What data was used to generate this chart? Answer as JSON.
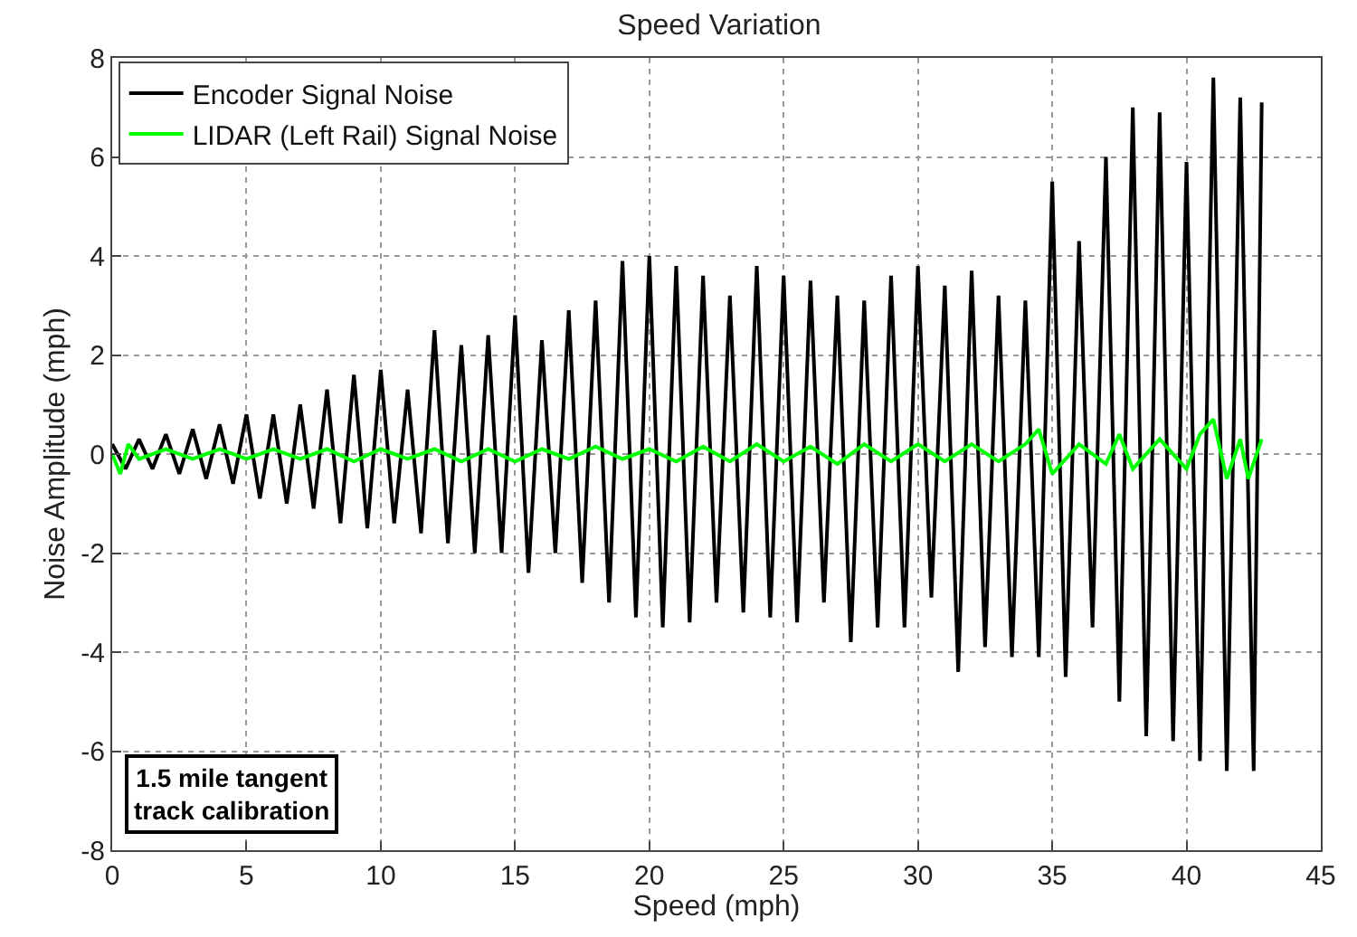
{
  "chart_data": {
    "type": "line",
    "title": "Speed Variation",
    "xlabel": "Speed (mph)",
    "ylabel": "Noise Amplitude (mph)",
    "xlim": [
      0,
      45
    ],
    "xticks": [
      0,
      5,
      10,
      15,
      20,
      25,
      30,
      35,
      40,
      45
    ],
    "ylim": [
      -8,
      8
    ],
    "yticks": [
      -8,
      -6,
      -4,
      -2,
      0,
      2,
      4,
      6,
      8
    ],
    "grid": true,
    "legend": "top left",
    "marker": "none",
    "line_style": "solid",
    "annotations": [
      "1.5 mile tangent\ntrack calibration"
    ],
    "series": [
      {
        "name": "Encoder Signal Noise",
        "color": "#000000",
        "x": [
          0,
          0.5,
          1,
          1.5,
          2,
          2.5,
          3,
          3.5,
          4,
          4.5,
          5,
          5.5,
          6,
          6.5,
          7,
          7.5,
          8,
          8.5,
          9,
          9.5,
          10,
          10.5,
          11,
          11.5,
          12,
          12.5,
          13,
          13.5,
          14,
          14.5,
          15,
          15.5,
          16,
          16.5,
          17,
          17.5,
          18,
          18.5,
          19,
          19.5,
          20,
          20.5,
          21,
          21.5,
          22,
          22.5,
          23,
          23.5,
          24,
          24.5,
          25,
          25.5,
          26,
          26.5,
          27,
          27.5,
          28,
          28.5,
          29,
          29.5,
          30,
          30.5,
          31,
          31.5,
          32,
          32.5,
          33,
          33.5,
          34,
          34.5,
          35,
          35.5,
          36,
          36.5,
          37,
          37.5,
          38,
          38.5,
          39,
          39.5,
          40,
          40.5,
          41,
          41.5,
          42,
          42.5,
          42.8
        ],
        "values": [
          0.2,
          -0.3,
          0.3,
          -0.3,
          0.4,
          -0.4,
          0.5,
          -0.5,
          0.6,
          -0.6,
          0.8,
          -0.9,
          0.8,
          -1,
          1,
          -1.1,
          1.3,
          -1.4,
          1.6,
          -1.5,
          1.7,
          -1.4,
          1.3,
          -1.6,
          2.5,
          -1.8,
          2.2,
          -2,
          2.4,
          -2,
          2.8,
          -2.4,
          2.3,
          -2,
          2.9,
          -2.6,
          3.1,
          -3,
          3.9,
          -3.3,
          4,
          -3.5,
          3.8,
          -3.4,
          3.6,
          -3,
          3.2,
          -3.2,
          3.8,
          -3.3,
          3.6,
          -3.4,
          3.5,
          -3,
          3.2,
          -3.8,
          3.1,
          -3.5,
          3.6,
          -3.5,
          3.8,
          -2.9,
          3.4,
          -4.4,
          3.7,
          -3.9,
          3.2,
          -4.1,
          3.1,
          -4.1,
          5.5,
          -4.5,
          4.3,
          -3.5,
          6,
          -5,
          7,
          -5.7,
          6.9,
          -5.8,
          5.9,
          -6.2,
          7.6,
          -6.4,
          7.2,
          -6.4,
          7.1
        ]
      },
      {
        "name": "LIDAR (Left Rail) Signal Noise",
        "color": "#00ff00",
        "x": [
          0,
          0.3,
          0.6,
          1,
          2,
          3,
          4,
          5,
          6,
          7,
          8,
          9,
          10,
          11,
          12,
          13,
          14,
          15,
          16,
          17,
          18,
          19,
          20,
          21,
          22,
          23,
          24,
          25,
          26,
          27,
          28,
          29,
          30,
          31,
          32,
          33,
          34,
          34.5,
          35,
          36,
          37,
          37.5,
          38,
          39,
          40,
          40.5,
          41,
          41.5,
          42,
          42.3,
          42.8
        ],
        "values": [
          0,
          -0.4,
          0.2,
          -0.1,
          0.1,
          -0.1,
          0.1,
          -0.1,
          0.1,
          -0.1,
          0.1,
          -0.15,
          0.1,
          -0.1,
          0.1,
          -0.15,
          0.1,
          -0.15,
          0.1,
          -0.1,
          0.15,
          -0.1,
          0.1,
          -0.15,
          0.15,
          -0.15,
          0.2,
          -0.15,
          0.15,
          -0.2,
          0.2,
          -0.15,
          0.2,
          -0.15,
          0.2,
          -0.15,
          0.2,
          0.5,
          -0.4,
          0.2,
          -0.2,
          0.4,
          -0.3,
          0.3,
          -0.3,
          0.4,
          0.7,
          -0.5,
          0.3,
          -0.5,
          0.3
        ]
      }
    ]
  }
}
